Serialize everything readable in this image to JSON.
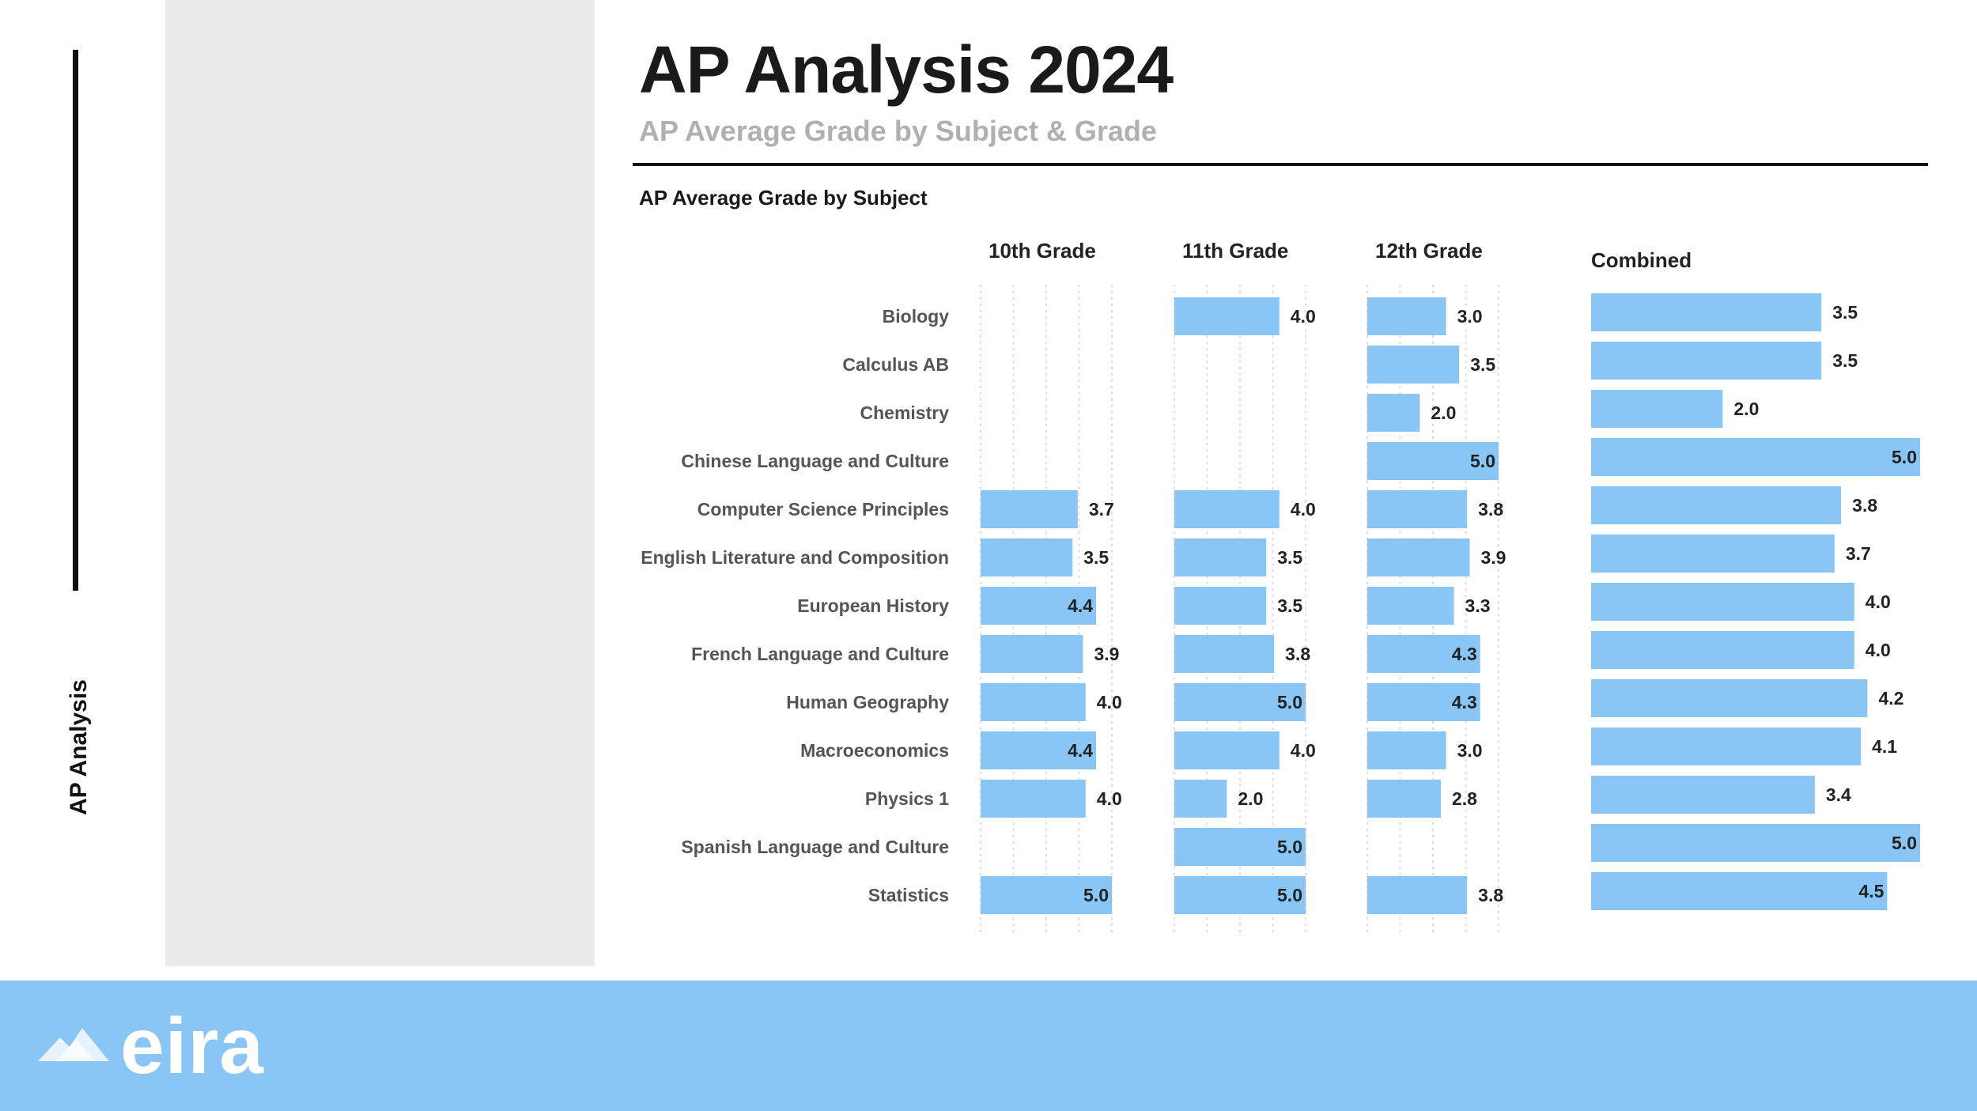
{
  "sidebar": {
    "label": "AP Analysis"
  },
  "header": {
    "title": "AP Analysis 2024",
    "subtitle": "AP Average Grade by Subject & Grade"
  },
  "chart_data": {
    "type": "bar",
    "orientation": "horizontal",
    "title": "AP Average Grade by Subject",
    "categories": [
      "Biology",
      "Calculus AB",
      "Chemistry",
      "Chinese Language and Culture",
      "Computer Science Principles",
      "English Literature and Composition",
      "European History",
      "French Language and Culture",
      "Human Geography",
      "Macroeconomics",
      "Physics 1",
      "Spanish Language and Culture",
      "Statistics"
    ],
    "xlim": [
      0,
      5
    ],
    "series": [
      {
        "name": "10th Grade",
        "values": [
          null,
          null,
          null,
          null,
          3.7,
          3.5,
          4.4,
          3.9,
          4.0,
          4.4,
          4.0,
          null,
          5.0
        ]
      },
      {
        "name": "11th Grade",
        "values": [
          4.0,
          null,
          null,
          null,
          4.0,
          3.5,
          3.5,
          3.8,
          5.0,
          4.0,
          2.0,
          5.0,
          5.0
        ]
      },
      {
        "name": "12th Grade",
        "values": [
          3.0,
          3.5,
          2.0,
          5.0,
          3.8,
          3.9,
          3.3,
          4.3,
          4.3,
          3.0,
          2.8,
          null,
          3.8
        ]
      },
      {
        "name": "Combined",
        "values": [
          3.5,
          3.5,
          2.0,
          5.0,
          3.8,
          3.7,
          4.0,
          4.0,
          4.2,
          4.1,
          3.4,
          5.0,
          4.5
        ]
      }
    ],
    "bar_color": "#8ac6f5",
    "label_format": "one decimal"
  },
  "footer": {
    "brand": "eira",
    "color": "#8ac6f5"
  }
}
